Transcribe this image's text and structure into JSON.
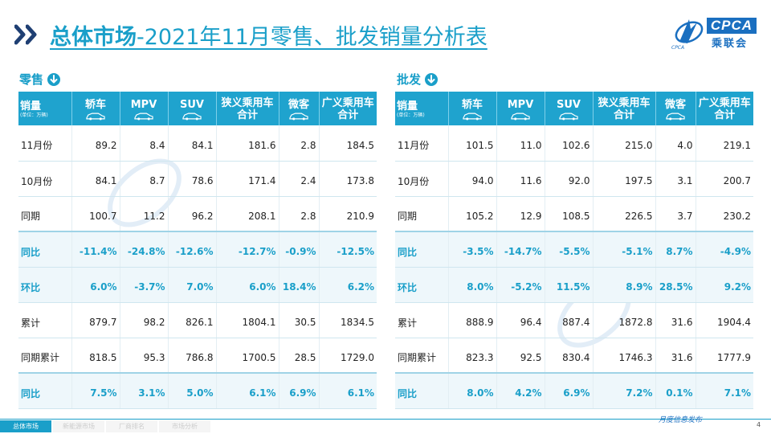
{
  "title": {
    "bold": "总体市场",
    "rest": "-2021年11月零售、批发销量分析表"
  },
  "logo": {
    "cpca": "CPCA",
    "cn": "乘联会",
    "small": "CPCA"
  },
  "retail": {
    "label": "零售",
    "header": {
      "first": "销量",
      "unit": "(单位：万辆)",
      "cols": [
        "轿车",
        "MPV",
        "SUV",
        "狭义乘用车\n合计",
        "微客",
        "广义乘用车\n合计"
      ]
    },
    "rows": [
      {
        "label": "11月份",
        "values": [
          "89.2",
          "8.4",
          "84.1",
          "181.6",
          "2.8",
          "184.5"
        ]
      },
      {
        "label": "10月份",
        "values": [
          "84.1",
          "8.7",
          "78.6",
          "171.4",
          "2.4",
          "173.8"
        ]
      },
      {
        "label": "同期",
        "values": [
          "100.7",
          "11.2",
          "96.2",
          "208.1",
          "2.8",
          "210.9"
        ]
      },
      {
        "label": "同比",
        "values": [
          "-11.4%",
          "-24.8%",
          "-12.6%",
          "-12.7%",
          "-0.9%",
          "-12.5%"
        ]
      },
      {
        "label": "环比",
        "values": [
          "6.0%",
          "-3.7%",
          "7.0%",
          "6.0%",
          "18.4%",
          "6.2%"
        ]
      },
      {
        "label": "累计",
        "values": [
          "879.7",
          "98.2",
          "826.1",
          "1804.1",
          "30.5",
          "1834.5"
        ]
      },
      {
        "label": "同期累计",
        "values": [
          "818.5",
          "95.3",
          "786.8",
          "1700.5",
          "28.5",
          "1729.0"
        ]
      },
      {
        "label": "同比",
        "values": [
          "7.5%",
          "3.1%",
          "5.0%",
          "6.1%",
          "6.9%",
          "6.1%"
        ]
      }
    ]
  },
  "wholesale": {
    "label": "批发",
    "header": {
      "first": "销量",
      "unit": "(单位：万辆)",
      "cols": [
        "轿车",
        "MPV",
        "SUV",
        "狭义乘用车\n合计",
        "微客",
        "广义乘用车\n合计"
      ]
    },
    "rows": [
      {
        "label": "11月份",
        "values": [
          "101.5",
          "11.0",
          "102.6",
          "215.0",
          "4.0",
          "219.1"
        ]
      },
      {
        "label": "10月份",
        "values": [
          "94.0",
          "11.6",
          "92.0",
          "197.5",
          "3.1",
          "200.7"
        ]
      },
      {
        "label": "同期",
        "values": [
          "105.2",
          "12.9",
          "108.5",
          "226.5",
          "3.7",
          "230.2"
        ]
      },
      {
        "label": "同比",
        "values": [
          "-3.5%",
          "-14.7%",
          "-5.5%",
          "-5.1%",
          "8.7%",
          "-4.9%"
        ]
      },
      {
        "label": "环比",
        "values": [
          "8.0%",
          "-5.2%",
          "11.5%",
          "8.9%",
          "28.5%",
          "9.2%"
        ]
      },
      {
        "label": "累计",
        "values": [
          "888.9",
          "96.4",
          "887.4",
          "1872.8",
          "31.6",
          "1904.4"
        ]
      },
      {
        "label": "同期累计",
        "values": [
          "823.3",
          "92.5",
          "830.4",
          "1746.3",
          "31.6",
          "1777.9"
        ]
      },
      {
        "label": "同比",
        "values": [
          "8.0%",
          "4.2%",
          "6.9%",
          "7.2%",
          "0.1%",
          "7.1%"
        ]
      }
    ]
  },
  "footer": {
    "tabs": [
      "总体市场",
      "新能源市场",
      "厂商排名",
      "市场分析"
    ],
    "publish": "月度信息发布",
    "page": "4"
  },
  "colors": {
    "accent": "#1a9fc9",
    "brand": "#1a6fc0",
    "highlight_bg": "#eef7fb"
  }
}
